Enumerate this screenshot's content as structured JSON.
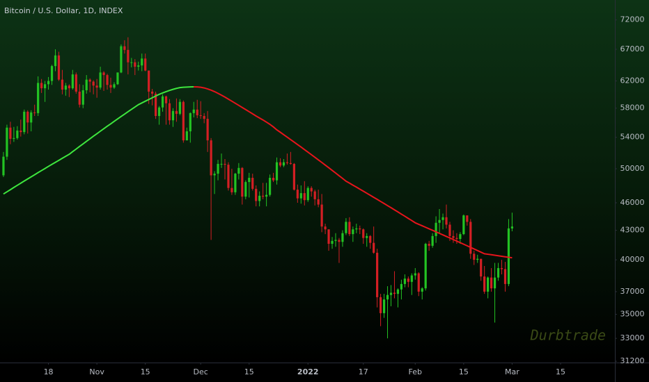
{
  "chart_data": {
    "type": "candlestick",
    "title": "Bitcoin / U.S. Dollar, 1D, INDEX",
    "watermark": "Durbtrade",
    "log_scale": true,
    "grid": false,
    "up_color": "#23c323",
    "down_color": "#d41f24",
    "xlim": [
      -1,
      176.7
    ],
    "ylim": [
      31100,
      75600
    ],
    "yticks": [
      72000,
      67000,
      62000,
      58000,
      54000,
      50000,
      46000,
      43000,
      40000,
      37000,
      35000,
      33000,
      31200
    ],
    "xticks": [
      {
        "value": 13,
        "label": "18"
      },
      {
        "value": 27,
        "label": "Nov"
      },
      {
        "value": 41,
        "label": "15"
      },
      {
        "value": 57,
        "label": "Dec"
      },
      {
        "value": 71,
        "label": "15"
      },
      {
        "value": 88,
        "label": "2022"
      },
      {
        "value": 104,
        "label": "17"
      },
      {
        "value": 119,
        "label": "Feb"
      },
      {
        "value": 133,
        "label": "15"
      },
      {
        "value": 147,
        "label": "Mar"
      },
      {
        "value": 161,
        "label": "15"
      }
    ],
    "candles": {
      "open": [
        49200,
        51500,
        55300,
        53800,
        53900,
        54900,
        54700,
        57500,
        56000,
        57400,
        57300,
        61700,
        60900,
        61500,
        62000,
        64300,
        66000,
        62200,
        60700,
        61300,
        60900,
        63000,
        60400,
        58500,
        60600,
        62200,
        61900,
        61300,
        61000,
        63300,
        62900,
        61400,
        61000,
        61500,
        63300,
        67500,
        66900,
        64900,
        64900,
        64200,
        64400,
        65500,
        63600,
        60400,
        60100,
        56900,
        58100,
        59700,
        58700,
        56300,
        57600,
        57200,
        58900,
        53600,
        54800,
        57300,
        57800,
        57000,
        56900,
        56500,
        53600,
        49200,
        49400,
        50600,
        50600,
        50500,
        47700,
        47200,
        49400,
        50100,
        46700,
        48400,
        48900,
        47600,
        46200,
        46800,
        46700,
        46900,
        48900,
        48600,
        50800,
        50400,
        50800,
        50700,
        50600,
        47500,
        46500,
        47100,
        46300,
        47700,
        47300,
        46400,
        45800,
        43400,
        43100,
        41600,
        41900,
        42000,
        41800,
        42700,
        43900,
        42600,
        43100,
        43200,
        43100,
        42200,
        42400,
        41700,
        40700,
        36500,
        35100,
        36300,
        36700,
        36900,
        36800,
        37200,
        37700,
        38200,
        37900,
        38500,
        38700,
        37000,
        37300,
        41600,
        41400,
        42400,
        43800,
        44100,
        44400,
        43600,
        42400,
        42200,
        42100,
        42600,
        44600,
        43900,
        40600,
        40000,
        40100,
        38400,
        37000,
        38300,
        37300,
        38300,
        39200,
        39100,
        37700,
        43200
      ],
      "high": [
        52100,
        55700,
        56100,
        55400,
        55500,
        56400,
        57800,
        57700,
        57700,
        58500,
        62700,
        62300,
        62000,
        62600,
        64500,
        67000,
        66600,
        63700,
        61700,
        61500,
        63700,
        63300,
        61500,
        61400,
        62900,
        62400,
        62100,
        62300,
        64200,
        63500,
        63100,
        62500,
        61800,
        63300,
        67800,
        68500,
        69000,
        65600,
        65400,
        65000,
        66300,
        66300,
        63600,
        60800,
        60400,
        58300,
        60000,
        59800,
        59300,
        58000,
        59400,
        59300,
        59100,
        55300,
        57400,
        58900,
        59200,
        59000,
        57300,
        57600,
        53900,
        49700,
        51100,
        51900,
        51200,
        50800,
        50000,
        49500,
        50700,
        50200,
        48600,
        49500,
        49400,
        48000,
        47300,
        48300,
        48300,
        49300,
        49500,
        51400,
        51300,
        51200,
        51900,
        52100,
        50700,
        48100,
        48000,
        48500,
        47900,
        47900,
        47500,
        47500,
        47000,
        43700,
        43100,
        42300,
        42700,
        42200,
        43000,
        44300,
        44400,
        43400,
        43700,
        43500,
        43200,
        42700,
        42500,
        43400,
        41100,
        36800,
        36800,
        37500,
        37600,
        38900,
        37300,
        38100,
        38600,
        38400,
        38700,
        39200,
        38800,
        37400,
        41700,
        41900,
        42700,
        44500,
        45300,
        44800,
        45800,
        43900,
        43000,
        42700,
        42800,
        44700,
        44600,
        44200,
        40900,
        40500,
        40100,
        39400,
        38400,
        39200,
        39700,
        39700,
        40000,
        39800,
        44200,
        44900
      ],
      "low": [
        49000,
        51100,
        53100,
        53400,
        53700,
        54100,
        54400,
        54500,
        54800,
        56900,
        56900,
        60200,
        58900,
        60700,
        61400,
        63500,
        62000,
        60000,
        59800,
        59600,
        60700,
        60100,
        58100,
        58000,
        60100,
        60300,
        60000,
        59500,
        60700,
        60500,
        60700,
        60200,
        60800,
        61400,
        63200,
        66300,
        63000,
        64100,
        62900,
        63600,
        63500,
        63500,
        58600,
        58400,
        56500,
        55700,
        57500,
        55700,
        55700,
        55400,
        56100,
        57000,
        53300,
        53600,
        53300,
        56700,
        56600,
        56500,
        55900,
        52100,
        42000,
        47000,
        48600,
        50100,
        48700,
        47400,
        46900,
        46900,
        48700,
        45800,
        46400,
        46600,
        47400,
        45600,
        45600,
        46400,
        45600,
        46700,
        48400,
        48100,
        50200,
        50200,
        50500,
        50500,
        47400,
        46000,
        45900,
        45700,
        46100,
        46700,
        45700,
        45500,
        42800,
        42600,
        40900,
        41100,
        41300,
        39700,
        41300,
        42500,
        42400,
        41800,
        42700,
        42600,
        41600,
        41300,
        41100,
        40600,
        35600,
        34000,
        34700,
        33000,
        35700,
        36400,
        35600,
        36300,
        37400,
        37400,
        36700,
        38100,
        36600,
        36300,
        37100,
        40900,
        41200,
        41700,
        42700,
        43100,
        43200,
        41900,
        41700,
        41600,
        41600,
        42500,
        43500,
        40100,
        39500,
        39700,
        38000,
        36800,
        36400,
        37000,
        34300,
        38000,
        38600,
        37000,
        37500,
        42900
      ],
      "close": [
        51500,
        55300,
        53800,
        53900,
        54900,
        54700,
        57500,
        56000,
        57400,
        57300,
        61700,
        60900,
        61500,
        62000,
        64300,
        66000,
        62200,
        60700,
        61300,
        60900,
        63000,
        60400,
        58500,
        60600,
        62200,
        61900,
        61300,
        61000,
        63300,
        62900,
        61400,
        61000,
        61500,
        63300,
        67500,
        66900,
        64900,
        64900,
        64200,
        64400,
        65500,
        63600,
        60400,
        60100,
        56900,
        58100,
        59700,
        58700,
        56300,
        57600,
        57200,
        58900,
        53600,
        54800,
        57300,
        57800,
        57000,
        56900,
        56500,
        53600,
        49200,
        49400,
        50600,
        50600,
        50500,
        47700,
        47200,
        49400,
        50100,
        46700,
        48400,
        48900,
        47600,
        46200,
        46800,
        46700,
        46900,
        48900,
        48600,
        50800,
        50400,
        50800,
        50700,
        50600,
        47500,
        46500,
        47100,
        46300,
        47700,
        47300,
        46400,
        45800,
        43400,
        43100,
        41600,
        41900,
        42000,
        41800,
        42700,
        43900,
        42600,
        43100,
        43200,
        43100,
        42200,
        42400,
        41700,
        40700,
        36500,
        35100,
        36300,
        36700,
        36900,
        36800,
        37200,
        37700,
        38200,
        37900,
        38500,
        38700,
        37000,
        37300,
        41600,
        41400,
        42400,
        43800,
        44100,
        44400,
        43600,
        42400,
        42200,
        42100,
        42600,
        44600,
        43900,
        40600,
        40000,
        40100,
        38400,
        37000,
        38300,
        37300,
        38300,
        39200,
        39100,
        37700,
        43200,
        43400
      ]
    },
    "moving_average": {
      "rising_color": "#3ee63e",
      "falling_color": "#e8141c",
      "values": [
        47000,
        47250,
        47500,
        47760,
        48010,
        48260,
        48520,
        48770,
        49020,
        49270,
        49530,
        49780,
        50030,
        50290,
        50540,
        50790,
        51040,
        51300,
        51550,
        51800,
        52140,
        52470,
        52810,
        53140,
        53480,
        53810,
        54150,
        54480,
        54820,
        55150,
        55490,
        55820,
        56160,
        56490,
        56830,
        57160,
        57500,
        57830,
        58170,
        58500,
        58750,
        59000,
        59250,
        59500,
        59750,
        60000,
        60200,
        60400,
        60580,
        60740,
        60880,
        61000,
        61050,
        61080,
        61100,
        61110,
        61100,
        61050,
        60950,
        60800,
        60620,
        60400,
        60150,
        59880,
        59600,
        59300,
        59000,
        58700,
        58400,
        58100,
        57800,
        57500,
        57200,
        56900,
        56620,
        56350,
        56050,
        55750,
        55400,
        55000,
        54680,
        54350,
        54030,
        53700,
        53380,
        53050,
        52730,
        52400,
        52080,
        51750,
        51430,
        51100,
        50780,
        50450,
        50130,
        49800,
        49480,
        49150,
        48830,
        48500,
        48270,
        48030,
        47800,
        47560,
        47330,
        47090,
        46860,
        46620,
        46390,
        46150,
        45920,
        45680,
        45450,
        45210,
        44980,
        44740,
        44510,
        44270,
        44040,
        43800,
        43640,
        43480,
        43320,
        43160,
        43000,
        42840,
        42680,
        42520,
        42360,
        42200,
        42040,
        41880,
        41720,
        41560,
        41400,
        41240,
        41080,
        40920,
        40760,
        40600,
        40550,
        40500,
        40450,
        40400,
        40350,
        40300,
        40250,
        40200
      ]
    }
  }
}
